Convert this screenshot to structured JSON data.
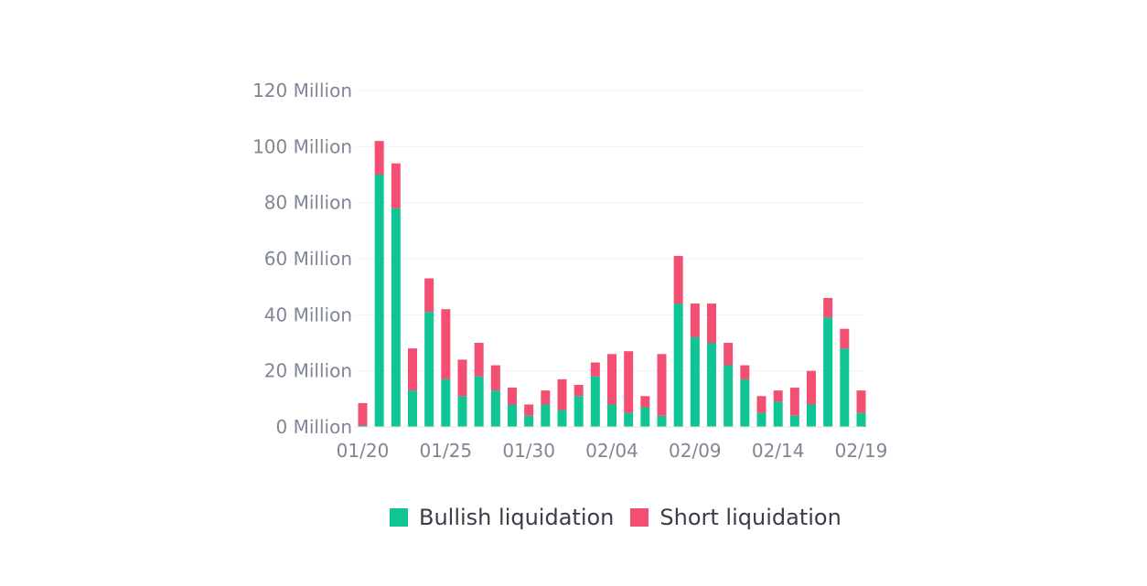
{
  "chart_data": {
    "type": "bar",
    "stacked": true,
    "categories": [
      "01/20",
      "01/21",
      "01/22",
      "01/23",
      "01/24",
      "01/25",
      "01/26",
      "01/27",
      "01/28",
      "01/29",
      "01/30",
      "01/31",
      "02/01",
      "02/02",
      "02/03",
      "02/04",
      "02/05",
      "02/06",
      "02/07",
      "02/08",
      "02/09",
      "02/10",
      "02/11",
      "02/12",
      "02/13",
      "02/14",
      "02/15",
      "02/16",
      "02/17",
      "02/18",
      "02/19"
    ],
    "x_tick_labels": [
      "01/20",
      "01/25",
      "01/30",
      "02/04",
      "02/09",
      "02/14",
      "02/19"
    ],
    "y_tick_labels": [
      "0 Million",
      "20 Million",
      "40 Million",
      "60 Million",
      "80 Million",
      "100 Million",
      "120 Million"
    ],
    "y_ticks": [
      0,
      20,
      40,
      60,
      80,
      100,
      120
    ],
    "ylim": [
      0,
      120
    ],
    "series": [
      {
        "name": "Bullish liquidation",
        "color": "#10c493",
        "values": [
          0.5,
          90,
          78,
          13,
          41,
          17,
          11,
          18,
          13,
          8,
          4,
          8,
          6,
          11,
          18,
          8,
          5,
          7,
          4,
          44,
          32,
          30,
          22,
          17,
          5,
          9,
          4,
          8,
          39,
          28,
          5
        ]
      },
      {
        "name": "Short liquidation",
        "color": "#f24f72",
        "values": [
          8,
          12,
          16,
          15,
          12,
          25,
          13,
          12,
          9,
          6,
          4,
          5,
          11,
          4,
          5,
          18,
          22,
          4,
          22,
          17,
          12,
          14,
          8,
          5,
          6,
          4,
          10,
          12,
          7,
          7,
          8
        ]
      }
    ],
    "legend_position": "bottom",
    "grid": true
  }
}
